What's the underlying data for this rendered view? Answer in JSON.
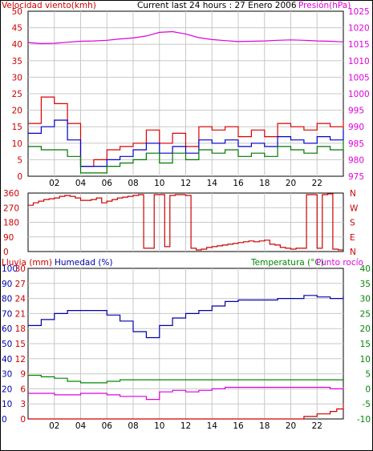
{
  "colors": {
    "wind": "#dd0000",
    "wind_avg": "#0000cc",
    "wind_gust": "#007700",
    "pressure": "#dd00dd",
    "direction": "#cc0000",
    "humidity": "#0000aa",
    "temperature": "#008800",
    "dewpoint": "#dd00dd",
    "rain": "#cc0000",
    "grid": "#c8c8c8",
    "text_left": "#cc0000",
    "text_title": "#000000"
  },
  "chart_data": [
    {
      "type": "line",
      "title": "Current last 24 hours : 27 Enero 2006",
      "ylabel_left": "Velocidad viento(kmh)",
      "ylabel_right": "Presión(hPa)",
      "x_ticks": [
        "02",
        "04",
        "06",
        "08",
        "10",
        "12",
        "14",
        "16",
        "18",
        "20",
        "22"
      ],
      "y_left_ticks": [
        "0",
        "5",
        "10",
        "15",
        "20",
        "25",
        "30",
        "35",
        "40",
        "45",
        "50"
      ],
      "y_right_ticks": [
        "975",
        "980",
        "985",
        "990",
        "995",
        "1000",
        "1005",
        "1010",
        "1015",
        "1020",
        "1025"
      ],
      "ylim_left": [
        0,
        50
      ],
      "ylim_right": [
        975,
        1025
      ],
      "series": [
        {
          "name": "wind_speed",
          "axis": "left",
          "x": [
            0,
            1,
            2,
            3,
            4,
            5,
            6,
            7,
            8,
            9,
            10,
            11,
            12,
            13,
            14,
            15,
            16,
            17,
            18,
            19,
            20,
            21,
            22,
            23,
            24
          ],
          "values": [
            16,
            24,
            22,
            16,
            3,
            5,
            8,
            9,
            10,
            14,
            10,
            13,
            9,
            15,
            14,
            15,
            12,
            14,
            12,
            16,
            15,
            14,
            16,
            15,
            17
          ]
        },
        {
          "name": "wind_avg",
          "axis": "left",
          "x": [
            0,
            1,
            2,
            3,
            4,
            5,
            6,
            7,
            8,
            9,
            10,
            11,
            12,
            13,
            14,
            15,
            16,
            17,
            18,
            19,
            20,
            21,
            22,
            23,
            24
          ],
          "values": [
            13,
            15,
            17,
            11,
            3,
            3,
            5,
            6,
            8,
            10,
            7,
            9,
            7,
            11,
            10,
            11,
            9,
            10,
            9,
            12,
            11,
            10,
            12,
            11,
            14
          ]
        },
        {
          "name": "wind_gust",
          "axis": "left",
          "x": [
            0,
            1,
            2,
            3,
            4,
            5,
            6,
            7,
            8,
            9,
            10,
            11,
            12,
            13,
            14,
            15,
            16,
            17,
            18,
            19,
            20,
            21,
            22,
            23,
            24
          ],
          "values": [
            9,
            8,
            8,
            6,
            1,
            1,
            3,
            4,
            5,
            7,
            4,
            7,
            5,
            8,
            7,
            8,
            6,
            7,
            6,
            9,
            8,
            7,
            9,
            8,
            11
          ]
        },
        {
          "name": "pressure",
          "axis": "right",
          "x": [
            0,
            1,
            2,
            3,
            4,
            5,
            6,
            7,
            8,
            9,
            10,
            11,
            12,
            13,
            14,
            15,
            16,
            17,
            18,
            19,
            20,
            21,
            22,
            23,
            24
          ],
          "values": [
            1015.5,
            1015.2,
            1015.3,
            1015.6,
            1015.9,
            1016.0,
            1016.2,
            1016.6,
            1016.9,
            1017.5,
            1018.6,
            1018.8,
            1018.1,
            1017.0,
            1016.4,
            1016.1,
            1015.8,
            1015.9,
            1016.0,
            1016.2,
            1016.3,
            1016.2,
            1016.0,
            1015.9,
            1015.7
          ]
        }
      ]
    },
    {
      "type": "line",
      "y_left_ticks": [
        "0",
        "90",
        "180",
        "270",
        "360"
      ],
      "y_right_ticks": [
        "N",
        "W",
        "S",
        "E",
        "N"
      ],
      "ylim_left": [
        0,
        360
      ],
      "series": [
        {
          "name": "wind_direction",
          "axis": "left",
          "x": [
            0,
            0.4,
            0.8,
            1.2,
            1.6,
            2.0,
            2.4,
            2.8,
            3.2,
            3.6,
            4.0,
            4.4,
            4.8,
            5.2,
            5.6,
            6.0,
            6.4,
            6.8,
            7.2,
            7.6,
            8.0,
            8.4,
            8.8,
            9.2,
            9.6,
            10.0,
            10.4,
            10.8,
            11.2,
            11.6,
            12.0,
            12.4,
            12.8,
            13.2,
            13.6,
            14.0,
            14.4,
            14.8,
            15.2,
            15.6,
            16.0,
            16.4,
            16.8,
            17.2,
            17.6,
            18.0,
            18.4,
            18.8,
            19.2,
            19.6,
            20.0,
            20.4,
            20.8,
            21.2,
            21.6,
            22.0,
            22.4,
            22.8,
            23.2,
            23.6,
            24.0
          ],
          "values": [
            285,
            300,
            310,
            320,
            325,
            330,
            340,
            345,
            340,
            330,
            315,
            315,
            320,
            330,
            300,
            310,
            320,
            330,
            335,
            340,
            345,
            350,
            20,
            20,
            350,
            350,
            30,
            345,
            350,
            350,
            345,
            20,
            10,
            15,
            25,
            30,
            35,
            40,
            45,
            50,
            55,
            60,
            65,
            60,
            65,
            70,
            45,
            40,
            25,
            20,
            15,
            20,
            20,
            350,
            350,
            20,
            350,
            355,
            15,
            10,
            10
          ]
        }
      ]
    },
    {
      "type": "line",
      "ylabel_left": "Lluvia (mm)",
      "ylabel_left2": "Humedad (%)",
      "ylabel_right": "Temperatura (°C)",
      "ylabel_right2": "Punto rocío",
      "x_ticks": [
        "02",
        "04",
        "06",
        "08",
        "10",
        "12",
        "14",
        "16",
        "18",
        "20",
        "22"
      ],
      "y_rain_ticks": [
        "0",
        "3",
        "6",
        "9",
        "12",
        "15",
        "18",
        "21",
        "24",
        "27",
        "30"
      ],
      "y_hum_ticks": [
        "0",
        "10",
        "20",
        "30",
        "40",
        "50",
        "60",
        "70",
        "80",
        "90",
        "100"
      ],
      "y_temp_ticks": [
        "-10",
        "-5",
        "0",
        "5",
        "10",
        "15",
        "20",
        "25",
        "30",
        "35",
        "40"
      ],
      "ylim_rain": [
        0,
        30
      ],
      "ylim_humidity": [
        0,
        100
      ],
      "ylim_temp": [
        -10,
        40
      ],
      "series": [
        {
          "name": "humidity",
          "axis": "humidity",
          "x": [
            0,
            1,
            2,
            3,
            4,
            5,
            6,
            7,
            8,
            9,
            10,
            11,
            12,
            13,
            14,
            15,
            16,
            17,
            18,
            19,
            20,
            21,
            22,
            23,
            24
          ],
          "values": [
            62,
            66,
            70,
            72,
            72,
            72,
            69,
            65,
            58,
            54,
            62,
            67,
            70,
            72,
            75,
            78,
            79,
            79,
            79,
            80,
            80,
            82,
            81,
            80,
            82
          ]
        },
        {
          "name": "temperature",
          "axis": "temp",
          "x": [
            0,
            1,
            2,
            3,
            4,
            5,
            6,
            7,
            8,
            9,
            10,
            11,
            12,
            13,
            14,
            15,
            16,
            17,
            18,
            19,
            20,
            21,
            22,
            23,
            24
          ],
          "values": [
            4.5,
            4,
            3.5,
            2.5,
            2,
            2,
            2.5,
            3,
            3,
            3,
            3,
            3,
            3,
            3,
            3,
            3,
            3,
            3,
            3,
            3,
            3,
            3,
            3,
            3,
            3
          ]
        },
        {
          "name": "dewpoint",
          "axis": "temp",
          "x": [
            0,
            1,
            2,
            3,
            4,
            5,
            6,
            7,
            8,
            9,
            10,
            11,
            12,
            13,
            14,
            15,
            16,
            17,
            18,
            19,
            20,
            21,
            22,
            23,
            24
          ],
          "values": [
            -1.5,
            -1.5,
            -2,
            -2,
            -1.5,
            -1.5,
            -2,
            -2.5,
            -2.5,
            -3.5,
            -1,
            -0.5,
            -1,
            -0.5,
            0,
            0.5,
            0.5,
            0.5,
            0.5,
            0.5,
            0.5,
            0.5,
            0.5,
            0,
            0.5
          ]
        },
        {
          "name": "rain",
          "axis": "rain",
          "x": [
            0,
            20,
            21,
            22,
            23,
            23.5,
            24
          ],
          "values": [
            0,
            0,
            0.5,
            1.0,
            1.5,
            2.0,
            3.0
          ]
        }
      ]
    }
  ]
}
